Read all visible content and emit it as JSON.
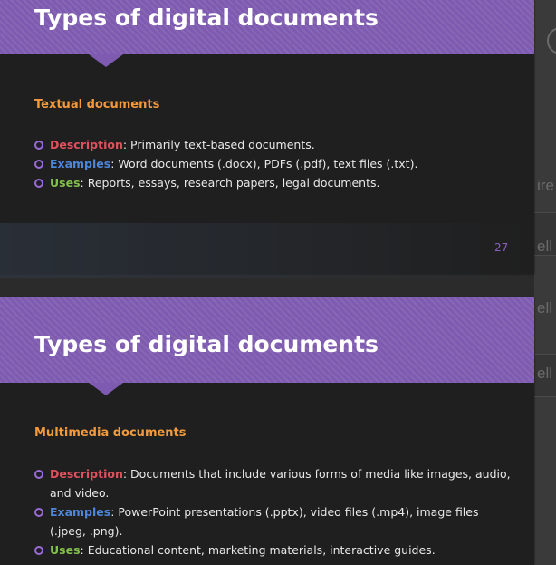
{
  "background": {
    "fragments": [
      "ire",
      "ell",
      "ell",
      "ell"
    ]
  },
  "slides": [
    {
      "title": "Types of digital documents",
      "section": "Textual documents",
      "items": [
        {
          "key": "Description",
          "text": ": Primarily text-based documents."
        },
        {
          "key": "Examples",
          "text": ": Word documents (.docx), PDFs (.pdf), text files (.txt)."
        },
        {
          "key": "Uses",
          "text": ": Reports, essays, research papers, legal documents."
        }
      ],
      "page_number": "27"
    },
    {
      "title": "Types of digital documents",
      "section": "Multimedia documents",
      "items": [
        {
          "key": "Description",
          "text": ": Documents that include various forms of media like images, audio, and video."
        },
        {
          "key": "Examples",
          "text": ": PowerPoint presentations (.pptx), video files (.mp4), image files (.jpeg, .png)."
        },
        {
          "key": "Uses",
          "text": ": Educational content, marketing materials, interactive guides."
        }
      ]
    }
  ],
  "colors": {
    "header": "#7e5bb0",
    "section": "#f29a3c",
    "description": "#e0505d",
    "examples": "#4e86d8",
    "uses": "#82c14a"
  }
}
